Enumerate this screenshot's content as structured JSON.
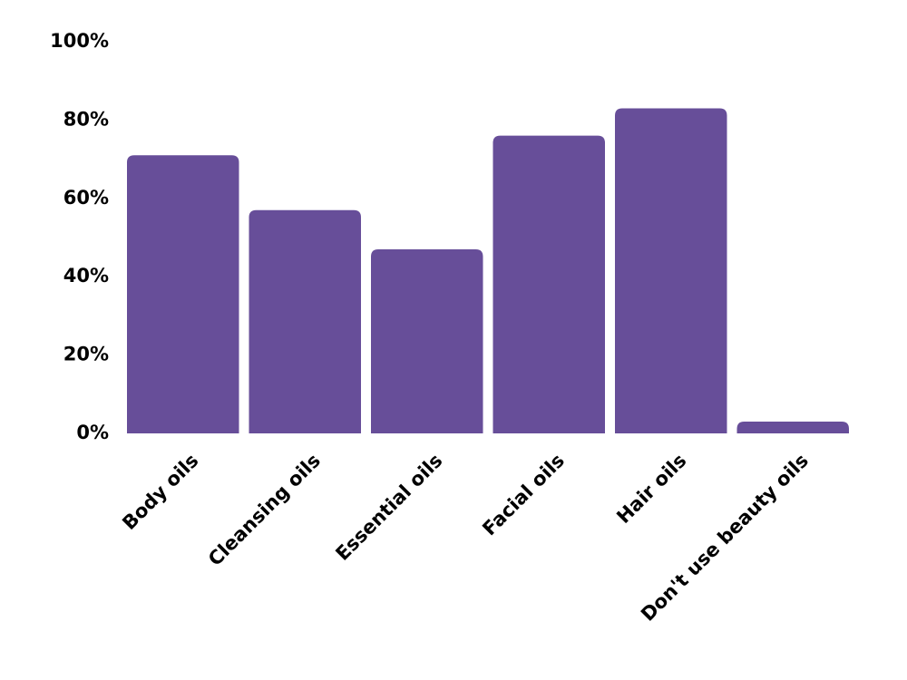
{
  "chart_data": {
    "type": "bar",
    "categories": [
      "Body oils",
      "Cleansing oils",
      "Essential oils",
      "Facial oils",
      "Hair oils",
      "Don't use beauty oils"
    ],
    "values": [
      71,
      57,
      47,
      76,
      83,
      3
    ],
    "color": "#674e99",
    "ylim": [
      0,
      100
    ],
    "yticks": [
      {
        "value": 0,
        "label": "0%"
      },
      {
        "value": 20,
        "label": "20%"
      },
      {
        "value": 40,
        "label": "40%"
      },
      {
        "value": 60,
        "label": "60%"
      },
      {
        "value": 80,
        "label": "80%"
      },
      {
        "value": 100,
        "label": "100%"
      }
    ],
    "grid": false
  }
}
